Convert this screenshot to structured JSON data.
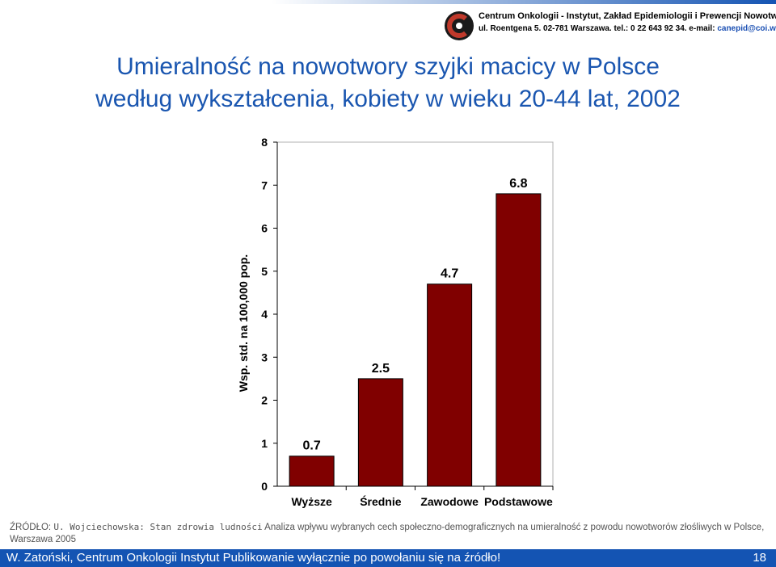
{
  "header": {
    "institution": "Centrum Onkologii - Instytut, Zakład Epidemiologii i Prewencji Nowotworów",
    "address": "ul. Roentgena 5. 02-781 Warszawa. tel.: 0 22 643 92 34. e-mail:",
    "email": "canepid@coi.waw.pl",
    "logo_letters": "C"
  },
  "title_line1": "Umieralność na nowotwory szyjki macicy w Polsce",
  "title_line2": "według wykształcenia, kobiety w wieku 20-44 lat, 2002",
  "chart_data": {
    "type": "bar",
    "categories": [
      "Wyższe",
      "Średnie",
      "Zawodowe",
      "Podstawowe"
    ],
    "values": [
      0.7,
      2.5,
      4.7,
      6.8
    ],
    "value_labels": [
      "0.7",
      "2.5",
      "4.7",
      "6.8"
    ],
    "ylabel": "Wsp. std. na 100,000 pop.",
    "xlabel": "",
    "ylim": [
      0,
      8
    ],
    "yticks": [
      "0",
      "1",
      "2",
      "3",
      "4",
      "5",
      "6",
      "7",
      "8"
    ],
    "bar_color": "#800000",
    "grid": false,
    "legend": false
  },
  "source": {
    "prefix": "ŹRÓDŁO:",
    "author": "U. Wojciechowska: Stan zdrowia ludności",
    "rest": "Analiza wpływu wybranych cech społeczno-demograficznych na umieralność z powodu nowotworów złośliwych w Polsce, Warszawa 2005"
  },
  "footer": {
    "text": "W. Zatoński, Centrum Onkologii Instytut Publikowanie wyłącznie po powołaniu się na źródło!",
    "page_number": "18"
  },
  "colors": {
    "title": "#1a56b0",
    "footer_bg": "#1454b3",
    "header_stripe": "#1454b3",
    "logo_red": "#c0392b"
  }
}
